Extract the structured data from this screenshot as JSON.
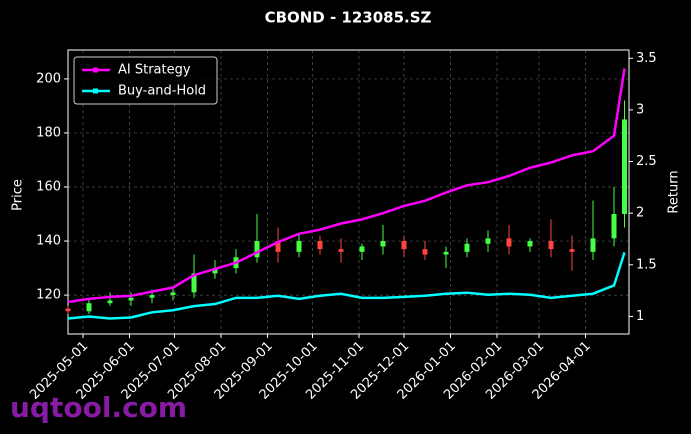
{
  "chart_data": {
    "type": "candlestick",
    "title": "CBOND - 123085.SZ",
    "ylabel": "Price",
    "y2label": "Return",
    "watermark": "uqtool.com",
    "xlim": [
      "2025-04-21",
      "2026-04-30"
    ],
    "xticks": [
      "2025-05-01",
      "2025-06-01",
      "2025-07-01",
      "2025-08-01",
      "2025-09-01",
      "2025-10-01",
      "2025-11-01",
      "2025-12-01",
      "2026-01-01",
      "2026-02-01",
      "2026-03-01",
      "2026-04-01"
    ],
    "ylim": [
      105.6,
      210.7
    ],
    "yticks": [
      120,
      140,
      160,
      180,
      200
    ],
    "y2lim": [
      0.83,
      3.58
    ],
    "y2ticks": [
      1.0,
      1.5,
      2.0,
      2.5,
      3.0,
      3.5
    ],
    "grid": true,
    "legend": "upper left",
    "up_color": "#44ff44",
    "down_color": "#ff4444",
    "x": [
      "2025-04-21",
      "2025-05-05",
      "2025-05-19",
      "2025-06-02",
      "2025-06-16",
      "2025-06-30",
      "2025-07-14",
      "2025-07-28",
      "2025-08-11",
      "2025-08-25",
      "2025-09-08",
      "2025-09-22",
      "2025-10-06",
      "2025-10-20",
      "2025-11-03",
      "2025-11-17",
      "2025-12-01",
      "2025-12-15",
      "2025-12-29",
      "2026-01-12",
      "2026-01-26",
      "2026-02-09",
      "2026-02-23",
      "2026-03-09",
      "2026-03-23",
      "2026-04-06",
      "2026-04-20",
      "2026-04-27"
    ],
    "open": [
      115,
      114,
      117,
      118,
      119,
      120,
      121,
      128,
      130,
      134,
      140,
      136,
      140,
      137,
      136,
      138,
      140,
      137,
      135,
      136,
      139,
      141,
      138,
      140,
      137,
      136,
      141,
      150
    ],
    "high": [
      116,
      119,
      121,
      121,
      122,
      123,
      135,
      133,
      137,
      150,
      145,
      143,
      142,
      141,
      139,
      146,
      142,
      140,
      138,
      141,
      144,
      146,
      141,
      148,
      142,
      155,
      160,
      192
    ],
    "low": [
      113,
      113,
      116,
      116,
      117,
      118,
      119,
      126,
      128,
      132,
      132,
      134,
      135,
      132,
      133,
      135,
      134,
      133,
      130,
      134,
      136,
      135,
      136,
      134,
      129,
      133,
      138,
      145
    ],
    "close": [
      114,
      117,
      118,
      119,
      120,
      121,
      128,
      130,
      134,
      140,
      136,
      140,
      137,
      136,
      138,
      140,
      137,
      135,
      136,
      139,
      141,
      138,
      140,
      137,
      136,
      141,
      150,
      185
    ],
    "series": [
      {
        "name": "AI Strategy",
        "color": "#ff00ff",
        "axis": "y2",
        "values": [
          1.14,
          1.17,
          1.19,
          1.2,
          1.24,
          1.28,
          1.4,
          1.46,
          1.52,
          1.62,
          1.72,
          1.8,
          1.84,
          1.9,
          1.94,
          2.0,
          2.07,
          2.12,
          2.2,
          2.27,
          2.3,
          2.36,
          2.44,
          2.49,
          2.56,
          2.6,
          2.75,
          3.4
        ]
      },
      {
        "name": "Buy-and-Hold",
        "color": "#00ffff",
        "axis": "y2",
        "values": [
          0.98,
          1.0,
          0.98,
          0.99,
          1.04,
          1.06,
          1.1,
          1.12,
          1.18,
          1.18,
          1.2,
          1.17,
          1.2,
          1.22,
          1.18,
          1.18,
          1.19,
          1.2,
          1.22,
          1.23,
          1.21,
          1.22,
          1.21,
          1.18,
          1.2,
          1.22,
          1.3,
          1.62
        ]
      }
    ]
  }
}
